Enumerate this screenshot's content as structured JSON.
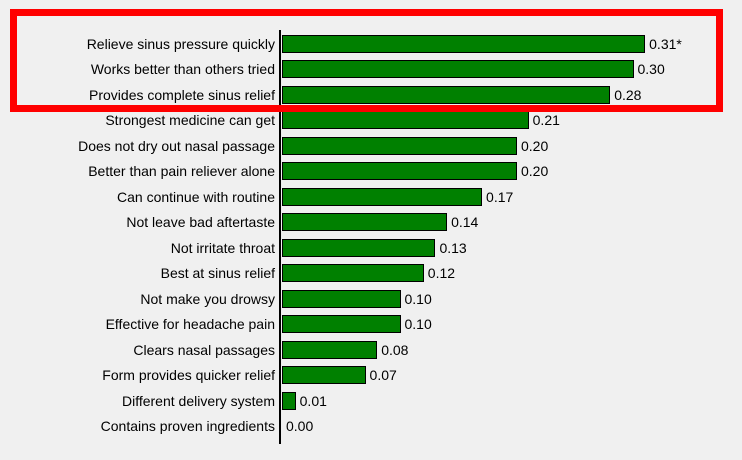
{
  "chart_data": {
    "type": "bar",
    "orientation": "horizontal",
    "title": "",
    "xlabel": "",
    "ylabel": "",
    "xlim": [
      0,
      0.38
    ],
    "grid": false,
    "legend": false,
    "background_color": "#f0f0f0",
    "bar_color": "#008000",
    "bar_border_color": "#000000",
    "axis_color": "#000000",
    "categories": [
      "Relieve sinus pressure quickly",
      "Works better than others tried",
      "Provides complete sinus relief",
      "Strongest medicine can get",
      "Does not dry out nasal passage",
      "Better than pain reliever alone",
      "Can continue with routine",
      "Not leave bad aftertaste",
      "Not irritate throat",
      "Best at sinus relief",
      "Not make you drowsy",
      "Effective for headache pain",
      "Clears nasal passages",
      "Form provides quicker relief",
      "Different delivery system",
      "Contains proven ingredients"
    ],
    "values": [
      0.31,
      0.3,
      0.28,
      0.21,
      0.2,
      0.2,
      0.17,
      0.14,
      0.13,
      0.12,
      0.1,
      0.1,
      0.08,
      0.07,
      0.01,
      0.0
    ],
    "value_labels": [
      "0.31*",
      "0.30",
      "0.28",
      "0.21",
      "0.20",
      "0.20",
      "0.17",
      "0.14",
      "0.13",
      "0.12",
      "0.10",
      "0.10",
      "0.08",
      "0.07",
      "0.01",
      "0.00"
    ],
    "highlight": {
      "color": "#ff0000",
      "row_indices": [
        0,
        1,
        2
      ],
      "rows": [
        "Relieve sinus pressure quickly",
        "Works better than others tried",
        "Provides complete sinus relief"
      ]
    }
  }
}
